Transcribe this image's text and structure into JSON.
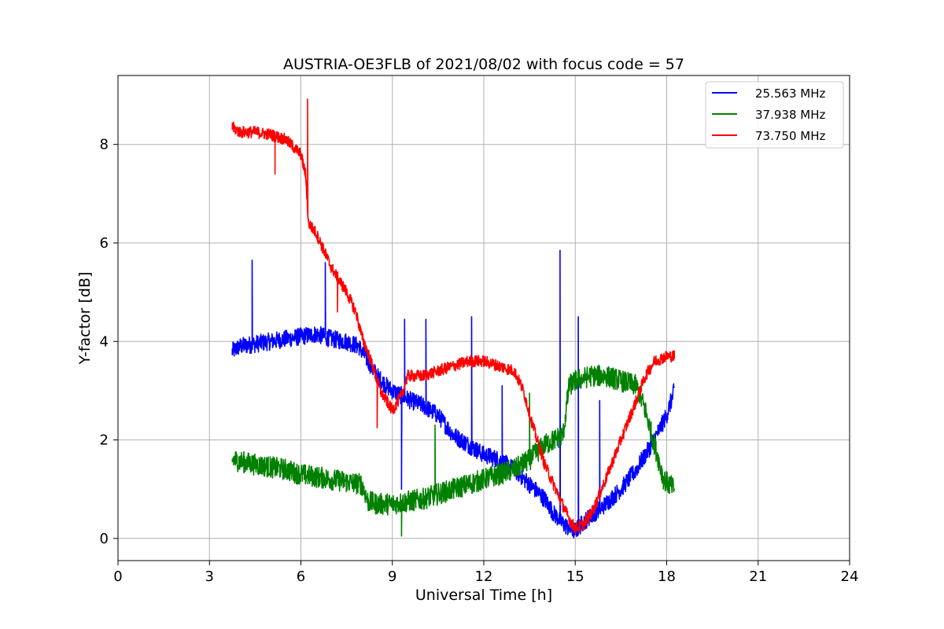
{
  "chart_data": {
    "type": "line",
    "title": "AUSTRIA-OE3FLB of 2021/08/02 with focus code = 57",
    "xlabel": "Universal Time [h]",
    "ylabel": "Y-factor [dB]",
    "xlim": [
      0,
      24
    ],
    "ylim": [
      -0.45,
      9.4
    ],
    "xticks": [
      0,
      3,
      6,
      9,
      12,
      15,
      18,
      21,
      24
    ],
    "yticks": [
      0,
      2,
      4,
      6,
      8
    ],
    "grid": true,
    "legend_position": "top-right",
    "noise_step_h": 0.02,
    "series": [
      {
        "name": "25.563 MHz",
        "color": "#0000ff",
        "noise": 0.18,
        "x": [
          3.75,
          4.0,
          4.5,
          5.0,
          5.5,
          6.0,
          6.5,
          7.0,
          7.5,
          7.9,
          8.2,
          8.5,
          8.8,
          9.0,
          9.3,
          9.6,
          10.0,
          10.5,
          11.0,
          11.5,
          12.0,
          12.5,
          13.0,
          13.5,
          14.0,
          14.3,
          14.6,
          14.8,
          15.0,
          15.3,
          15.6,
          16.0,
          16.5,
          17.0,
          17.5,
          18.0,
          18.25
        ],
        "y": [
          3.8,
          3.9,
          3.95,
          4.0,
          4.05,
          4.1,
          4.15,
          4.05,
          4.0,
          3.9,
          3.6,
          3.3,
          3.1,
          3.0,
          2.9,
          2.8,
          2.7,
          2.5,
          2.1,
          1.9,
          1.7,
          1.6,
          1.4,
          1.1,
          0.8,
          0.5,
          0.3,
          0.2,
          0.15,
          0.35,
          0.5,
          0.7,
          1.0,
          1.4,
          1.9,
          2.5,
          3.0
        ],
        "spikes": [
          [
            4.4,
            5.65
          ],
          [
            6.8,
            5.6
          ],
          [
            9.4,
            4.45
          ],
          [
            10.1,
            4.45
          ],
          [
            11.6,
            4.5
          ],
          [
            14.5,
            5.85
          ],
          [
            15.1,
            4.5
          ],
          [
            15.8,
            2.8
          ],
          [
            9.3,
            1.0
          ],
          [
            12.6,
            3.1
          ]
        ]
      },
      {
        "name": "37.938 MHz",
        "color": "#008000",
        "noise": 0.22,
        "x": [
          3.75,
          4.5,
          5.5,
          6.0,
          6.5,
          7.0,
          7.5,
          8.0,
          8.2,
          8.5,
          9.0,
          9.5,
          10.0,
          10.5,
          11.0,
          11.5,
          12.0,
          12.5,
          13.0,
          13.5,
          14.0,
          14.6,
          14.8,
          15.0,
          15.5,
          16.0,
          16.5,
          17.0,
          17.3,
          17.6,
          17.9,
          18.25
        ],
        "y": [
          1.6,
          1.5,
          1.4,
          1.3,
          1.25,
          1.2,
          1.15,
          1.1,
          0.75,
          0.7,
          0.7,
          0.75,
          0.8,
          0.9,
          1.0,
          1.1,
          1.2,
          1.3,
          1.4,
          1.6,
          1.9,
          2.1,
          3.1,
          3.2,
          3.3,
          3.3,
          3.2,
          3.1,
          2.6,
          1.9,
          1.2,
          1.0
        ],
        "spikes": [
          [
            13.5,
            2.95
          ],
          [
            9.3,
            0.05
          ],
          [
            10.4,
            2.3
          ]
        ]
      },
      {
        "name": "73.750 MHz",
        "color": "#ff0000",
        "noise": 0.12,
        "x": [
          3.75,
          4.0,
          4.5,
          5.0,
          5.5,
          6.0,
          6.15,
          6.25,
          6.5,
          7.0,
          7.5,
          7.8,
          8.0,
          8.3,
          8.6,
          9.0,
          9.3,
          9.5,
          10.0,
          10.5,
          11.0,
          11.5,
          12.0,
          12.5,
          13.0,
          13.3,
          13.6,
          14.0,
          14.5,
          14.8,
          15.0,
          15.3,
          15.6,
          16.0,
          16.5,
          17.0,
          17.3,
          17.6,
          18.0,
          18.25
        ],
        "y": [
          8.35,
          8.25,
          8.25,
          8.2,
          8.1,
          7.8,
          7.4,
          6.4,
          6.2,
          5.5,
          5.0,
          4.6,
          4.1,
          3.6,
          3.0,
          2.6,
          2.9,
          3.3,
          3.3,
          3.4,
          3.5,
          3.6,
          3.6,
          3.5,
          3.4,
          3.0,
          2.3,
          1.5,
          0.8,
          0.4,
          0.2,
          0.3,
          0.6,
          1.2,
          2.0,
          2.8,
          3.3,
          3.6,
          3.7,
          3.7
        ],
        "spikes": [
          [
            6.22,
            8.92
          ],
          [
            5.15,
            7.4
          ],
          [
            7.2,
            4.6
          ],
          [
            8.5,
            2.25
          ]
        ]
      }
    ]
  }
}
